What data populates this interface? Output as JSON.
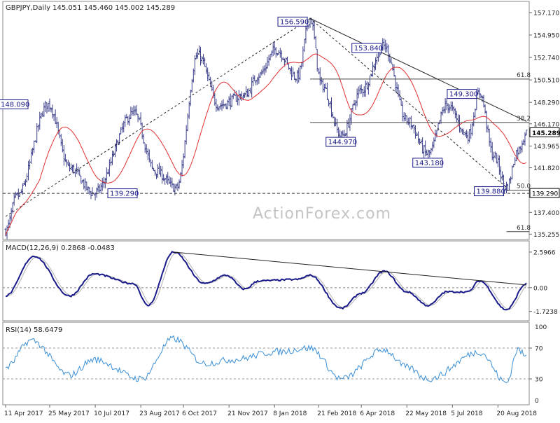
{
  "chart_data": [
    {
      "type": "candlestick",
      "panel": "price",
      "header": "GBPJPY,Daily  145.051 145.460 145.002 145.289",
      "watermark": "ActionForex.com",
      "last_price": 145.289,
      "y_ticks": [
        157.17,
        154.95,
        152.74,
        150.51,
        148.29,
        146.17,
        143.965,
        141.82,
        139.61,
        137.4,
        135.255
      ],
      "ylim": [
        135.0,
        158.0
      ],
      "x_ticks": [
        "11 Apr 2017",
        "25 May 2017",
        "10 Jul 2017",
        "23 Aug 2017",
        "6 Oct 2017",
        "21 Nov 2017",
        "8 Jan 2018",
        "21 Feb 2018",
        "6 Apr 2018",
        "22 May 2018",
        "5 Jul 2018",
        "20 Aug 2018"
      ],
      "x_tick_index": [
        0,
        31,
        63,
        95,
        125,
        157,
        189,
        220,
        250,
        282,
        314,
        346
      ],
      "bars": 367,
      "pivots": [
        {
          "i": 0,
          "v": 135.6
        },
        {
          "i": 8,
          "v": 139.0
        },
        {
          "i": 30,
          "v": 148.09
        },
        {
          "i": 45,
          "v": 141.8
        },
        {
          "i": 62,
          "v": 139.29
        },
        {
          "i": 90,
          "v": 147.2
        },
        {
          "i": 105,
          "v": 141.5
        },
        {
          "i": 120,
          "v": 139.8
        },
        {
          "i": 135,
          "v": 153.0
        },
        {
          "i": 150,
          "v": 148.0
        },
        {
          "i": 168,
          "v": 149.0
        },
        {
          "i": 178,
          "v": 151.0
        },
        {
          "i": 190,
          "v": 153.5
        },
        {
          "i": 205,
          "v": 150.8
        },
        {
          "i": 214,
          "v": 156.59
        },
        {
          "i": 222,
          "v": 150.0
        },
        {
          "i": 236,
          "v": 144.97
        },
        {
          "i": 250,
          "v": 149.5
        },
        {
          "i": 266,
          "v": 153.84
        },
        {
          "i": 282,
          "v": 146.5
        },
        {
          "i": 297,
          "v": 143.18
        },
        {
          "i": 310,
          "v": 148.0
        },
        {
          "i": 325,
          "v": 145.0
        },
        {
          "i": 333,
          "v": 149.3
        },
        {
          "i": 343,
          "v": 143.0
        },
        {
          "i": 352,
          "v": 139.88
        },
        {
          "i": 360,
          "v": 143.5
        },
        {
          "i": 366,
          "v": 145.289
        }
      ],
      "ma_label": "",
      "trendlines": [
        {
          "from": [
            0,
            137.0
          ],
          "to": [
            214,
            156.59
          ]
        },
        {
          "from": [
            214,
            156.59
          ],
          "to": [
            352,
            139.88
          ]
        },
        {
          "from": [
            214,
            156.59
          ],
          "to": [
            366,
            146.4
          ]
        }
      ],
      "levels": [
        {
          "label": "61.8",
          "value": 150.6,
          "from": 214
        },
        {
          "label": "38.2",
          "value": 146.3,
          "from": 214
        },
        {
          "label": "50.0",
          "value": 139.6,
          "from": 352
        },
        {
          "label": "61.8",
          "value": 135.5,
          "from": 352
        }
      ],
      "horizontal_line": {
        "label": "139.290",
        "value": 139.29
      },
      "callouts": [
        {
          "text": "156.590",
          "i": 214,
          "v": 156.59
        },
        {
          "text": "153.840",
          "i": 266,
          "v": 153.84
        },
        {
          "text": "149.300",
          "i": 333,
          "v": 149.3
        },
        {
          "text": "148.090",
          "i": 30,
          "v": 148.09
        },
        {
          "text": "144.970",
          "i": 236,
          "v": 144.97
        },
        {
          "text": "143.180",
          "i": 297,
          "v": 143.18
        },
        {
          "text": "139.880",
          "i": 352,
          "v": 139.88
        },
        {
          "text": "139.290",
          "i": 62,
          "v": 139.29
        }
      ],
      "colors": {
        "up": "#3b3f8a",
        "down": "#3b3f8a",
        "ma": "#e03030",
        "text": "#333333",
        "line": "#222222"
      }
    },
    {
      "type": "line",
      "panel": "macd",
      "header": "MACD(12,26,9) 0.2868 -0.0483",
      "y_ticks": [
        2.5966,
        0.0,
        -1.7238
      ],
      "ylim": [
        -2.1,
        3.0
      ],
      "pivots": [
        {
          "i": 0,
          "v": -0.6
        },
        {
          "i": 20,
          "v": 2.3
        },
        {
          "i": 45,
          "v": -0.6
        },
        {
          "i": 62,
          "v": 1.0
        },
        {
          "i": 90,
          "v": 0.3
        },
        {
          "i": 100,
          "v": -1.3
        },
        {
          "i": 118,
          "v": 2.5966
        },
        {
          "i": 140,
          "v": 0.3
        },
        {
          "i": 155,
          "v": 0.9
        },
        {
          "i": 168,
          "v": -0.1
        },
        {
          "i": 178,
          "v": 0.5
        },
        {
          "i": 205,
          "v": 0.6
        },
        {
          "i": 214,
          "v": 0.9
        },
        {
          "i": 236,
          "v": -1.5
        },
        {
          "i": 250,
          "v": -0.4
        },
        {
          "i": 266,
          "v": 1.2
        },
        {
          "i": 282,
          "v": -0.3
        },
        {
          "i": 297,
          "v": -1.3
        },
        {
          "i": 310,
          "v": -0.3
        },
        {
          "i": 325,
          "v": -0.3
        },
        {
          "i": 333,
          "v": 0.5
        },
        {
          "i": 352,
          "v": -1.6
        },
        {
          "i": 366,
          "v": 0.2868
        }
      ],
      "signal_lag": 4,
      "trendline": {
        "from": [
          118,
          2.5966
        ],
        "to": [
          366,
          0.2
        ]
      },
      "colors": {
        "macd": "#1a1a8a",
        "signal": "#b0b0b0",
        "zero": "#888888"
      }
    },
    {
      "type": "line",
      "panel": "rsi",
      "header": "RSI(14) 58.6479",
      "y_ticks": [
        70,
        30
      ],
      "ylim": [
        0,
        100
      ],
      "pivots": [
        {
          "i": 0,
          "v": 45
        },
        {
          "i": 18,
          "v": 80
        },
        {
          "i": 45,
          "v": 35
        },
        {
          "i": 62,
          "v": 55
        },
        {
          "i": 95,
          "v": 30
        },
        {
          "i": 118,
          "v": 82
        },
        {
          "i": 140,
          "v": 50
        },
        {
          "i": 160,
          "v": 55
        },
        {
          "i": 190,
          "v": 65
        },
        {
          "i": 214,
          "v": 70
        },
        {
          "i": 236,
          "v": 30
        },
        {
          "i": 266,
          "v": 68
        },
        {
          "i": 282,
          "v": 45
        },
        {
          "i": 297,
          "v": 30
        },
        {
          "i": 333,
          "v": 65
        },
        {
          "i": 352,
          "v": 25
        },
        {
          "i": 360,
          "v": 68
        },
        {
          "i": 366,
          "v": 58.6479
        }
      ],
      "colors": {
        "rsi": "#3a8fd6",
        "level": "#999999"
      }
    }
  ]
}
